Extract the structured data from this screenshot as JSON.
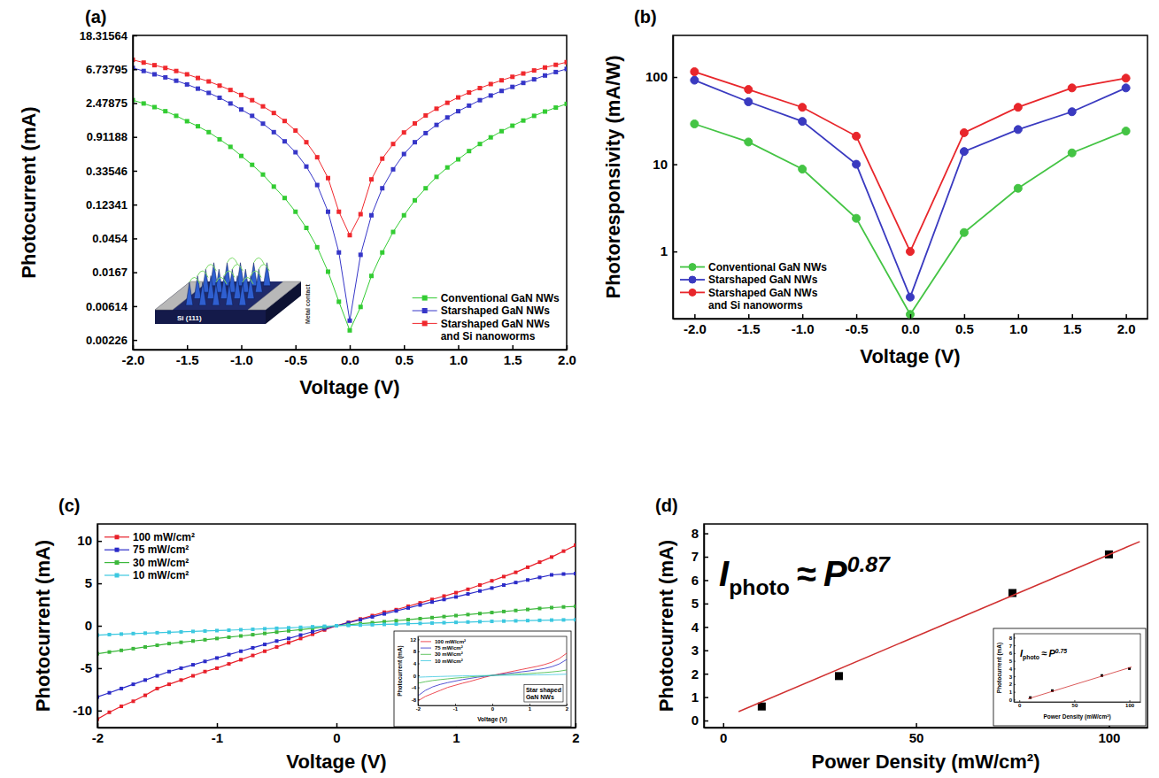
{
  "chart_data": [
    {
      "type": "line",
      "title": "(a)",
      "xlabel": "Voltage (V)",
      "ylabel": "Photocurrent (mA)",
      "log": "y",
      "xlim": [
        -2,
        2
      ],
      "ylim": [
        0.0017,
        18.31564
      ],
      "xticks": [
        {
          "value": -2,
          "label": "-2.0"
        },
        -1.5,
        {
          "value": -1,
          "label": "-1.0"
        },
        -0.5,
        {
          "value": 0,
          "label": "0.0"
        },
        0.5,
        {
          "value": 1,
          "label": "1.0"
        },
        1.5,
        {
          "value": 2,
          "label": "2.0"
        }
      ],
      "yticks": [
        0.00226,
        0.00614,
        0.0167,
        0.0454,
        0.12341,
        0.33546,
        0.91188,
        2.47875,
        6.73795,
        18.31564
      ],
      "legend": "lower right",
      "annotations": [
        "Si (111)",
        "Metal contact"
      ],
      "x": [
        -2,
        -1.9,
        -1.8,
        -1.7,
        -1.6,
        -1.5,
        -1.4,
        -1.3,
        -1.2,
        -1.1,
        -1,
        -0.9,
        -0.8,
        -0.7,
        -0.6,
        -0.5,
        -0.4,
        -0.3,
        -0.2,
        -0.1,
        0,
        0.1,
        0.2,
        0.3,
        0.4,
        0.5,
        0.6,
        0.7,
        0.8,
        0.9,
        1,
        1.1,
        1.2,
        1.3,
        1.4,
        1.5,
        1.6,
        1.7,
        1.8,
        1.9,
        2
      ],
      "series": [
        {
          "name": "Conventional GaN NWs",
          "color": "#33cc33",
          "marker": "square",
          "values": [
            2.7,
            2.45,
            2.2,
            1.95,
            1.7,
            1.45,
            1.25,
            1.05,
            0.85,
            0.68,
            0.52,
            0.4,
            0.3,
            0.21,
            0.15,
            0.1,
            0.062,
            0.035,
            0.017,
            0.007,
            0.003,
            0.006,
            0.015,
            0.03,
            0.055,
            0.09,
            0.14,
            0.2,
            0.28,
            0.37,
            0.47,
            0.6,
            0.74,
            0.9,
            1.08,
            1.27,
            1.48,
            1.7,
            1.93,
            2.17,
            2.42
          ]
        },
        {
          "name": "Starshaped GaN NWs",
          "color": "#3636c8",
          "marker": "square",
          "values": [
            7.0,
            6.4,
            5.8,
            5.3,
            4.8,
            4.3,
            3.8,
            3.35,
            2.9,
            2.45,
            2.05,
            1.7,
            1.35,
            1.05,
            0.8,
            0.58,
            0.38,
            0.22,
            0.1,
            0.03,
            0.004,
            0.028,
            0.09,
            0.2,
            0.35,
            0.55,
            0.78,
            1.02,
            1.3,
            1.62,
            1.95,
            2.3,
            2.7,
            3.1,
            3.55,
            4.0,
            4.5,
            5.0,
            5.6,
            6.2,
            6.8
          ]
        },
        {
          "name": "Starshaped GaN NWs and Si nanoworms",
          "color": "#f0282d",
          "marker": "square",
          "values": [
            8.9,
            8.2,
            7.6,
            7.0,
            6.4,
            5.8,
            5.2,
            4.7,
            4.15,
            3.65,
            3.15,
            2.7,
            2.25,
            1.85,
            1.46,
            1.1,
            0.78,
            0.5,
            0.27,
            0.1,
            0.05,
            0.093,
            0.26,
            0.48,
            0.74,
            1.04,
            1.36,
            1.72,
            2.1,
            2.5,
            2.93,
            3.39,
            3.86,
            4.35,
            4.86,
            5.39,
            5.94,
            6.5,
            7.09,
            7.68,
            8.3
          ]
        }
      ]
    },
    {
      "type": "line",
      "title": "(b)",
      "xlabel": "Voltage (V)",
      "ylabel": "Photoresponsivity (mA/W)",
      "log": "y",
      "xlim": [
        -2.2,
        2.2
      ],
      "ylim": [
        0.17,
        300
      ],
      "xticks": [
        {
          "value": -2,
          "label": "-2.0"
        },
        -1.5,
        {
          "value": -1,
          "label": "-1.0"
        },
        -0.5,
        {
          "value": 0,
          "label": "0.0"
        },
        0.5,
        {
          "value": 1,
          "label": "1.0"
        },
        1.5,
        {
          "value": 2,
          "label": "2.0"
        }
      ],
      "yticks": [
        1,
        10,
        100
      ],
      "legend": "lower left",
      "x": [
        -2,
        -1.5,
        -1,
        -0.5,
        0,
        0.5,
        1,
        1.5,
        2
      ],
      "series": [
        {
          "name": "Conventional GaN NWs",
          "color": "#44c444",
          "marker": "circle",
          "values": [
            29,
            18,
            8.8,
            2.4,
            0.19,
            1.65,
            5.3,
            13.5,
            24
          ]
        },
        {
          "name": "Starshaped GaN NWs",
          "color": "#3a3ac0",
          "marker": "circle",
          "values": [
            92,
            52,
            31,
            10,
            0.3,
            14,
            25,
            40,
            75
          ]
        },
        {
          "name": "Starshaped GaN NWs and Si nanoworms",
          "color": "#e8262b",
          "marker": "circle",
          "values": [
            115,
            72,
            45,
            21,
            1.0,
            23,
            45,
            75,
            97
          ]
        }
      ]
    },
    {
      "type": "line",
      "title": "(c)",
      "xlabel": "Voltage (V)",
      "ylabel": "Photocurrent (mA)",
      "xlim": [
        -2,
        2
      ],
      "ylim": [
        -12,
        12
      ],
      "xticks": [
        -2,
        -1,
        0,
        1,
        2
      ],
      "yticks": [
        -10,
        -5,
        0,
        5,
        10
      ],
      "legend": "upper left",
      "x": [
        -2,
        -1.9,
        -1.8,
        -1.7,
        -1.6,
        -1.5,
        -1.4,
        -1.3,
        -1.2,
        -1.1,
        -1,
        -0.9,
        -0.8,
        -0.7,
        -0.6,
        -0.5,
        -0.4,
        -0.3,
        -0.2,
        -0.1,
        0,
        0.1,
        0.2,
        0.3,
        0.4,
        0.5,
        0.6,
        0.7,
        0.8,
        0.9,
        1,
        1.1,
        1.2,
        1.3,
        1.4,
        1.5,
        1.6,
        1.7,
        1.8,
        1.9,
        2
      ],
      "series": [
        {
          "name": "100 mW/cm²",
          "color": "#e8202a",
          "marker": "square",
          "values": [
            -11.0,
            -10.2,
            -9.5,
            -8.9,
            -8.2,
            -7.4,
            -6.9,
            -6.4,
            -5.9,
            -5.4,
            -5.0,
            -4.5,
            -4.0,
            -3.5,
            -3.0,
            -2.5,
            -2.0,
            -1.5,
            -1.0,
            -0.5,
            0,
            0.4,
            0.8,
            1.2,
            1.6,
            1.9,
            2.3,
            2.7,
            3.1,
            3.5,
            3.9,
            4.3,
            4.8,
            5.3,
            5.8,
            6.3,
            6.9,
            7.5,
            8.1,
            8.8,
            9.5
          ]
        },
        {
          "name": "75 mW/cm²",
          "color": "#2b2bc8",
          "marker": "square",
          "values": [
            -8.4,
            -7.9,
            -7.4,
            -6.9,
            -6.4,
            -5.9,
            -5.4,
            -5.0,
            -4.6,
            -4.2,
            -3.8,
            -3.4,
            -3.0,
            -2.6,
            -2.2,
            -1.8,
            -1.5,
            -1.1,
            -0.7,
            -0.35,
            0,
            0.35,
            0.7,
            1.05,
            1.4,
            1.75,
            2.1,
            2.45,
            2.8,
            3.1,
            3.4,
            3.75,
            4.1,
            4.45,
            4.8,
            5.1,
            5.4,
            5.7,
            6.0,
            6.1,
            6.15
          ]
        },
        {
          "name": "30 mW/cm²",
          "color": "#3cb83c",
          "marker": "square",
          "values": [
            -3.3,
            -3.1,
            -2.9,
            -2.7,
            -2.5,
            -2.3,
            -2.1,
            -1.95,
            -1.8,
            -1.65,
            -1.5,
            -1.35,
            -1.2,
            -1.05,
            -0.9,
            -0.75,
            -0.6,
            -0.45,
            -0.3,
            -0.15,
            0,
            0.12,
            0.24,
            0.36,
            0.48,
            0.6,
            0.72,
            0.84,
            0.96,
            1.08,
            1.2,
            1.32,
            1.44,
            1.56,
            1.68,
            1.8,
            1.92,
            2.04,
            2.14,
            2.22,
            2.28
          ]
        },
        {
          "name": "10 mW/cm²",
          "color": "#3cc8e0",
          "marker": "square",
          "values": [
            -1.1,
            -1.04,
            -0.98,
            -0.92,
            -0.87,
            -0.82,
            -0.77,
            -0.72,
            -0.67,
            -0.62,
            -0.57,
            -0.52,
            -0.47,
            -0.42,
            -0.36,
            -0.3,
            -0.24,
            -0.18,
            -0.12,
            -0.06,
            0,
            0.04,
            0.08,
            0.12,
            0.16,
            0.2,
            0.24,
            0.28,
            0.32,
            0.36,
            0.4,
            0.44,
            0.48,
            0.52,
            0.55,
            0.58,
            0.61,
            0.64,
            0.67,
            0.69,
            0.71
          ]
        }
      ]
    },
    {
      "type": "line",
      "xlabel": "Voltage (V)",
      "ylabel": "Photocurrent (mA)",
      "xlim": [
        -2,
        2
      ],
      "ylim": [
        -10,
        13
      ],
      "xticks": [
        -2,
        -1,
        0,
        1,
        2
      ],
      "yticks": [
        -8,
        -4,
        0,
        4,
        8,
        12
      ],
      "legend": "upper left",
      "annotations": [
        "Star shaped GaN NWs"
      ],
      "x": [
        -2,
        -1.8,
        -1.6,
        -1.4,
        -1.2,
        -1,
        -0.8,
        -0.6,
        -0.4,
        -0.2,
        0,
        0.2,
        0.4,
        0.6,
        0.8,
        1,
        1.2,
        1.4,
        1.6,
        1.8,
        2
      ],
      "series": [
        {
          "name": "100 mW/cm²",
          "color": "#e8202a",
          "values": [
            -8.5,
            -7.0,
            -6.0,
            -5.0,
            -4.0,
            -3.3,
            -2.6,
            -2.0,
            -1.3,
            -0.6,
            0,
            0.5,
            1.0,
            1.5,
            2.0,
            2.5,
            3.0,
            3.6,
            4.4,
            5.6,
            7.4
          ]
        },
        {
          "name": "75 mW/cm²",
          "color": "#2b2bc8",
          "values": [
            -6.8,
            -5.0,
            -3.8,
            -3.0,
            -2.4,
            -1.9,
            -1.4,
            -1.0,
            -0.6,
            -0.3,
            0,
            0.3,
            0.6,
            0.9,
            1.2,
            1.5,
            1.9,
            2.3,
            2.9,
            3.8,
            5.3
          ]
        },
        {
          "name": "30 mW/cm²",
          "color": "#3cb83c",
          "values": [
            -2.6,
            -2.1,
            -1.7,
            -1.4,
            -1.15,
            -0.9,
            -0.7,
            -0.5,
            -0.3,
            -0.15,
            0,
            0.12,
            0.25,
            0.38,
            0.5,
            0.65,
            0.8,
            0.95,
            1.15,
            1.4,
            1.8
          ]
        },
        {
          "name": "10 mW/cm²",
          "color": "#3cc8e0",
          "values": [
            -0.6,
            -0.5,
            -0.42,
            -0.35,
            -0.28,
            -0.22,
            -0.16,
            -0.11,
            -0.07,
            -0.03,
            0,
            0.03,
            0.06,
            0.09,
            0.12,
            0.16,
            0.2,
            0.24,
            0.28,
            0.33,
            0.4
          ]
        }
      ]
    },
    {
      "type": "scatter",
      "title": "(d)",
      "xlabel": "Power Density (mW/cm²)",
      "ylabel": "Photocurrent (mA)",
      "xlim": [
        -5,
        110
      ],
      "ylim": [
        -0.3,
        8.4
      ],
      "xticks": [
        0,
        50,
        100
      ],
      "yticks": [
        0,
        1,
        2,
        3,
        4,
        5,
        6,
        7,
        8
      ],
      "annotations": [
        {
          "text": "I",
          "subscript": "photo",
          "operator": "≈",
          "term": "P",
          "superscript": "0.87"
        }
      ],
      "series": [
        {
          "color": "#000000",
          "marker": "square",
          "x": [
            10,
            30,
            75,
            100
          ],
          "values": [
            0.6,
            1.9,
            5.45,
            7.1
          ]
        },
        {
          "type": "line",
          "color": "#d03030",
          "x": [
            4,
            108
          ],
          "values": [
            0.38,
            7.65
          ]
        }
      ]
    },
    {
      "type": "scatter",
      "xlabel": "Power Density (mW/cm²)",
      "ylabel": "Photocurrent (mA)",
      "xlim": [
        -5,
        110
      ],
      "ylim": [
        -0.3,
        8.5
      ],
      "xticks": [
        0,
        50,
        100
      ],
      "yticks": [
        0,
        1,
        2,
        3,
        4,
        5,
        6,
        7,
        8
      ],
      "annotations": [
        {
          "text": "I",
          "subscript": "photo",
          "operator": "≈",
          "term": "P",
          "superscript": "0.75"
        }
      ],
      "series": [
        {
          "color": "#000000",
          "marker": "square",
          "x": [
            10,
            30,
            75,
            100
          ],
          "values": [
            0.25,
            1.15,
            3.1,
            4.0
          ]
        },
        {
          "type": "line",
          "color": "#d03030",
          "x": [
            8,
            102
          ],
          "values": [
            0.1,
            4.2
          ]
        }
      ]
    }
  ]
}
